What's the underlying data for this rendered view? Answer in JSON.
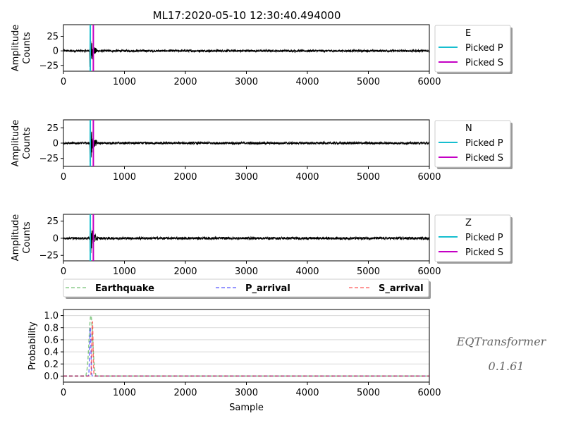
{
  "chart_data": {
    "title": "ML17:2020-05-10 12:30:40.494000",
    "xlim": [
      0,
      6000
    ],
    "x_ticks": [
      "0",
      "1000",
      "2000",
      "3000",
      "4000",
      "5000",
      "6000"
    ],
    "xlabel": "Sample",
    "picks": {
      "p": 440,
      "s": 490
    },
    "colors": {
      "trace": "#000000",
      "picked_p": "#17becf",
      "picked_s": "#c400c4",
      "earthquake": "#2ca02c",
      "p_arrival": "#0000ff",
      "s_arrival": "#ff0000"
    },
    "panels": [
      {
        "type": "line",
        "component": "E",
        "ylabel_top": "Amplitude",
        "ylabel_bottom": "Counts",
        "ylim": [
          -35,
          45
        ],
        "y_ticks": [
          {
            "v": 25,
            "t": "25"
          },
          {
            "v": 0,
            "t": "0"
          },
          {
            "v": -25,
            "t": "−25"
          }
        ],
        "noise": 2,
        "peak": 28,
        "legend": [
          "E",
          "Picked P",
          "Picked S"
        ]
      },
      {
        "type": "line",
        "component": "N",
        "ylabel_top": "Amplitude",
        "ylabel_bottom": "Counts",
        "ylim": [
          -38,
          38
        ],
        "y_ticks": [
          {
            "v": 25,
            "t": "25"
          },
          {
            "v": 0,
            "t": "0"
          },
          {
            "v": -25,
            "t": "−25"
          }
        ],
        "noise": 2,
        "peak": 30,
        "legend": [
          "N",
          "Picked P",
          "Picked S"
        ]
      },
      {
        "type": "line",
        "component": "Z",
        "ylabel_top": "Amplitude",
        "ylabel_bottom": "Counts",
        "ylim": [
          -33,
          35
        ],
        "y_ticks": [
          {
            "v": 25,
            "t": "25"
          },
          {
            "v": 0,
            "t": "0"
          },
          {
            "v": -25,
            "t": "−25"
          }
        ],
        "noise": 2,
        "peak": 26,
        "legend": [
          "Z",
          "Picked P",
          "Picked S"
        ]
      }
    ],
    "probability": {
      "type": "line",
      "ylabel": "Probability",
      "ylim": [
        -0.1,
        1.1
      ],
      "y_ticks": [
        "0.0",
        "0.2",
        "0.4",
        "0.6",
        "0.8",
        "1.0"
      ],
      "series": [
        {
          "name": "Earthquake",
          "style": "dashed",
          "peaks": [
            {
              "x": 450,
              "y": 1.0
            }
          ]
        },
        {
          "name": "P_arrival",
          "style": "dashed",
          "peaks": [
            {
              "x": 440,
              "y": 0.8
            }
          ]
        },
        {
          "name": "S_arrival",
          "style": "dashed",
          "peaks": [
            {
              "x": 475,
              "y": 0.9
            }
          ]
        }
      ]
    }
  },
  "watermark": {
    "name": "EQTransformer",
    "version": "0.1.61"
  }
}
